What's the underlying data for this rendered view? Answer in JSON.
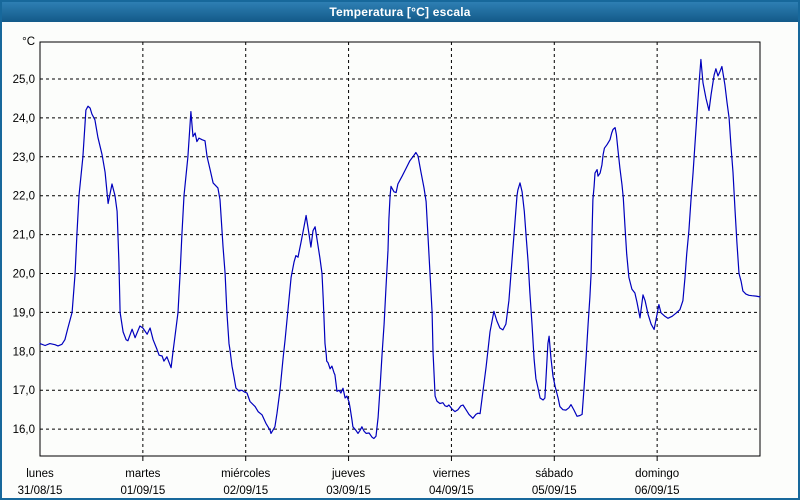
{
  "window": {
    "title": "Temperatura [°C] escala"
  },
  "chart_data": {
    "type": "line",
    "title": "Temperatura [°C] escala",
    "legend": "none",
    "grid": "dashed",
    "y_axis": {
      "unit": "°C",
      "range": [
        15.31,
        25.95
      ],
      "tick_values": [
        16,
        17,
        18,
        19,
        20,
        21,
        22,
        23,
        24,
        25
      ],
      "tick_labels": [
        "16,0",
        "17,0",
        "18,0",
        "19,0",
        "20,0",
        "21,0",
        "22,0",
        "23,0",
        "24,0",
        "25,0"
      ]
    },
    "x_axis": {
      "total_hours": 168,
      "days": [
        {
          "name": "lunes",
          "date": "31/08/15"
        },
        {
          "name": "martes",
          "date": "01/09/15"
        },
        {
          "name": "miércoles",
          "date": "02/09/15"
        },
        {
          "name": "jueves",
          "date": "03/09/15"
        },
        {
          "name": "viernes",
          "date": "04/09/15"
        },
        {
          "name": "sábado",
          "date": "05/09/15"
        },
        {
          "name": "domingo",
          "date": "06/09/15"
        }
      ]
    },
    "series": [
      {
        "name": "Temperatura",
        "color": "#0000bd",
        "points": [
          [
            0,
            18.2
          ],
          [
            1.2,
            18.15
          ],
          [
            2.3,
            18.2
          ],
          [
            3.5,
            18.17
          ],
          [
            4.2,
            18.14
          ],
          [
            5.1,
            18.18
          ],
          [
            5.8,
            18.3
          ],
          [
            6.5,
            18.6
          ],
          [
            7.5,
            19.0
          ],
          [
            7.9,
            19.6
          ],
          [
            8.2,
            20.0
          ],
          [
            8.6,
            21.0
          ],
          [
            9.1,
            22.0
          ],
          [
            10,
            23.0
          ],
          [
            10.7,
            24.2
          ],
          [
            11.2,
            24.3
          ],
          [
            11.7,
            24.25
          ],
          [
            12.1,
            24.1
          ],
          [
            12.8,
            23.95
          ],
          [
            13.5,
            23.5
          ],
          [
            14.5,
            23.05
          ],
          [
            15.2,
            22.6
          ],
          [
            15.9,
            21.8
          ],
          [
            16.8,
            22.3
          ],
          [
            17.5,
            22.0
          ],
          [
            18,
            21.6
          ],
          [
            18.4,
            20.3
          ],
          [
            18.7,
            19.0
          ],
          [
            19.4,
            18.5
          ],
          [
            20.1,
            18.3
          ],
          [
            20.5,
            18.27
          ],
          [
            21.5,
            18.57
          ],
          [
            22.2,
            18.35
          ],
          [
            23.3,
            18.65
          ],
          [
            24,
            18.6
          ],
          [
            25,
            18.44
          ],
          [
            25.7,
            18.6
          ],
          [
            26.4,
            18.3
          ],
          [
            27.3,
            18.05
          ],
          [
            27.8,
            17.9
          ],
          [
            28.5,
            17.88
          ],
          [
            28.9,
            17.75
          ],
          [
            29.6,
            17.86
          ],
          [
            30.6,
            17.58
          ],
          [
            31,
            17.97
          ],
          [
            31.5,
            18.39
          ],
          [
            32.2,
            19.0
          ],
          [
            32.7,
            20.0
          ],
          [
            33.1,
            21.0
          ],
          [
            33.6,
            22.0
          ],
          [
            34.5,
            23.0
          ],
          [
            35.2,
            24.16
          ],
          [
            35.7,
            23.52
          ],
          [
            36.2,
            23.61
          ],
          [
            36.6,
            23.39
          ],
          [
            37.1,
            23.48
          ],
          [
            37.8,
            23.44
          ],
          [
            38.5,
            23.41
          ],
          [
            39,
            23.0
          ],
          [
            39.7,
            22.67
          ],
          [
            40.4,
            22.33
          ],
          [
            41.5,
            22.2
          ],
          [
            42,
            21.9
          ],
          [
            42.7,
            20.7
          ],
          [
            43.2,
            20.0
          ],
          [
            43.6,
            19.0
          ],
          [
            44.1,
            18.2
          ],
          [
            44.3,
            18.05
          ],
          [
            44.8,
            17.62
          ],
          [
            45.3,
            17.33
          ],
          [
            45.7,
            17.06
          ],
          [
            46.4,
            16.98
          ],
          [
            47.1,
            17.0
          ],
          [
            47.8,
            16.95
          ],
          [
            48.3,
            16.93
          ],
          [
            49,
            16.71
          ],
          [
            50.2,
            16.58
          ],
          [
            50.9,
            16.45
          ],
          [
            51.8,
            16.37
          ],
          [
            52.7,
            16.15
          ],
          [
            53.7,
            15.97
          ],
          [
            53.9,
            15.89
          ],
          [
            54.8,
            16.06
          ],
          [
            55.3,
            16.41
          ],
          [
            56,
            17.0
          ],
          [
            56.7,
            17.8
          ],
          [
            57.2,
            18.3
          ],
          [
            57.9,
            19.1
          ],
          [
            58.6,
            19.9
          ],
          [
            59.3,
            20.3
          ],
          [
            59.7,
            20.46
          ],
          [
            60.2,
            20.42
          ],
          [
            60.9,
            20.8
          ],
          [
            61.6,
            21.2
          ],
          [
            62.1,
            21.49
          ],
          [
            62.8,
            21.0
          ],
          [
            63.2,
            20.68
          ],
          [
            63.7,
            21.1
          ],
          [
            64.2,
            21.2
          ],
          [
            64.6,
            20.9
          ],
          [
            65.3,
            20.4
          ],
          [
            65.8,
            20.0
          ],
          [
            66.1,
            19.3
          ],
          [
            66.5,
            18.2
          ],
          [
            66.8,
            17.9
          ],
          [
            66.9,
            17.75
          ],
          [
            67.2,
            17.71
          ],
          [
            67.7,
            17.55
          ],
          [
            68.1,
            17.62
          ],
          [
            68.6,
            17.45
          ],
          [
            68.8,
            17.4
          ],
          [
            69.3,
            16.97
          ],
          [
            69.8,
            17.0
          ],
          [
            70.2,
            16.93
          ],
          [
            70.7,
            17.05
          ],
          [
            71.2,
            16.8
          ],
          [
            71.6,
            16.85
          ],
          [
            72.1,
            16.7
          ],
          [
            72.3,
            16.58
          ],
          [
            72.8,
            16.23
          ],
          [
            73,
            16.06
          ],
          [
            73.7,
            15.97
          ],
          [
            74.2,
            15.89
          ],
          [
            74.7,
            15.97
          ],
          [
            75.1,
            16.06
          ],
          [
            75.6,
            15.95
          ],
          [
            76.1,
            15.89
          ],
          [
            76.8,
            15.9
          ],
          [
            77.5,
            15.79
          ],
          [
            77.9,
            15.76
          ],
          [
            78.4,
            15.82
          ],
          [
            78.9,
            16.3
          ],
          [
            79.3,
            17.0
          ],
          [
            79.8,
            17.9
          ],
          [
            80.3,
            18.7
          ],
          [
            80.7,
            19.6
          ],
          [
            81.2,
            20.6
          ],
          [
            81.4,
            21.4
          ],
          [
            81.7,
            22.0
          ],
          [
            81.9,
            22.24
          ],
          [
            82.6,
            22.1
          ],
          [
            83.1,
            22.08
          ],
          [
            83.5,
            22.3
          ],
          [
            84.5,
            22.5
          ],
          [
            85.4,
            22.7
          ],
          [
            86.3,
            22.9
          ],
          [
            87,
            23.0
          ],
          [
            87.7,
            23.11
          ],
          [
            88.2,
            23.02
          ],
          [
            88.9,
            22.6
          ],
          [
            89.6,
            22.2
          ],
          [
            90.1,
            21.85
          ],
          [
            90.5,
            21.0
          ],
          [
            91,
            20.0
          ],
          [
            91.5,
            19.0
          ],
          [
            91.7,
            18.0
          ],
          [
            92.2,
            16.85
          ],
          [
            92.6,
            16.72
          ],
          [
            93.3,
            16.66
          ],
          [
            94,
            16.68
          ],
          [
            94.5,
            16.6
          ],
          [
            95,
            16.58
          ],
          [
            95.4,
            16.62
          ],
          [
            96.1,
            16.52
          ],
          [
            96.8,
            16.45
          ],
          [
            97.5,
            16.5
          ],
          [
            98.2,
            16.6
          ],
          [
            98.7,
            16.62
          ],
          [
            99.4,
            16.5
          ],
          [
            100.1,
            16.38
          ],
          [
            101,
            16.28
          ],
          [
            101.7,
            16.38
          ],
          [
            102.2,
            16.41
          ],
          [
            102.7,
            16.4
          ],
          [
            103.4,
            17.0
          ],
          [
            104.1,
            17.6
          ],
          [
            105,
            18.5
          ],
          [
            105.9,
            19.03
          ],
          [
            106.6,
            18.78
          ],
          [
            107.3,
            18.6
          ],
          [
            108,
            18.55
          ],
          [
            108.7,
            18.7
          ],
          [
            109.4,
            19.3
          ],
          [
            110.1,
            20.3
          ],
          [
            110.8,
            21.3
          ],
          [
            111.3,
            22.0
          ],
          [
            111.5,
            22.15
          ],
          [
            112,
            22.33
          ],
          [
            112.5,
            22.1
          ],
          [
            113,
            21.6
          ],
          [
            113.4,
            21.0
          ],
          [
            113.9,
            20.3
          ],
          [
            114.3,
            19.5
          ],
          [
            114.8,
            18.7
          ],
          [
            115.3,
            17.8
          ],
          [
            115.7,
            17.3
          ],
          [
            116.2,
            17.06
          ],
          [
            116.7,
            16.8
          ],
          [
            117.4,
            16.75
          ],
          [
            117.8,
            16.8
          ],
          [
            118.5,
            18.2
          ],
          [
            118.8,
            18.39
          ],
          [
            119.2,
            17.84
          ],
          [
            119.7,
            17.36
          ],
          [
            120.2,
            17.1
          ],
          [
            120.9,
            16.8
          ],
          [
            121.3,
            16.58
          ],
          [
            122,
            16.5
          ],
          [
            122.7,
            16.49
          ],
          [
            123.4,
            16.55
          ],
          [
            123.9,
            16.63
          ],
          [
            124.6,
            16.49
          ],
          [
            125.3,
            16.33
          ],
          [
            126,
            16.35
          ],
          [
            126.5,
            16.38
          ],
          [
            126.9,
            17.0
          ],
          [
            127.4,
            17.8
          ],
          [
            127.9,
            18.7
          ],
          [
            128.3,
            19.4
          ],
          [
            128.6,
            20.0
          ],
          [
            128.8,
            21.0
          ],
          [
            129,
            21.9
          ],
          [
            129.3,
            22.24
          ],
          [
            129.5,
            22.58
          ],
          [
            130,
            22.67
          ],
          [
            130.2,
            22.5
          ],
          [
            130.7,
            22.58
          ],
          [
            131.1,
            22.79
          ],
          [
            131.4,
            23.05
          ],
          [
            131.7,
            23.22
          ],
          [
            132.3,
            23.31
          ],
          [
            132.5,
            23.35
          ],
          [
            133,
            23.44
          ],
          [
            133.4,
            23.61
          ],
          [
            133.7,
            23.7
          ],
          [
            134.2,
            23.75
          ],
          [
            134.5,
            23.57
          ],
          [
            134.9,
            23.14
          ],
          [
            135.3,
            22.71
          ],
          [
            135.8,
            22.28
          ],
          [
            136.1,
            21.94
          ],
          [
            136.5,
            21.2
          ],
          [
            136.9,
            20.5
          ],
          [
            137.4,
            19.9
          ],
          [
            138.1,
            19.6
          ],
          [
            138.8,
            19.5
          ],
          [
            139.3,
            19.26
          ],
          [
            140,
            18.86
          ],
          [
            140.7,
            19.45
          ],
          [
            141.2,
            19.3
          ],
          [
            141.9,
            18.95
          ],
          [
            142.6,
            18.7
          ],
          [
            143.3,
            18.56
          ],
          [
            143.7,
            18.8
          ],
          [
            144.4,
            19.2
          ],
          [
            144.9,
            18.99
          ],
          [
            145.8,
            18.9
          ],
          [
            146.5,
            18.85
          ],
          [
            147.5,
            18.9
          ],
          [
            148.4,
            18.98
          ],
          [
            149.3,
            19.07
          ],
          [
            150,
            19.3
          ],
          [
            150.5,
            19.9
          ],
          [
            150.9,
            20.5
          ],
          [
            151.4,
            21.1
          ],
          [
            151.9,
            21.9
          ],
          [
            152.4,
            22.6
          ],
          [
            152.8,
            23.3
          ],
          [
            153.3,
            24.1
          ],
          [
            153.8,
            24.9
          ],
          [
            154.2,
            25.5
          ],
          [
            154.7,
            24.9
          ],
          [
            155.4,
            24.5
          ],
          [
            156.1,
            24.19
          ],
          [
            156.6,
            24.6
          ],
          [
            157.3,
            25.1
          ],
          [
            157.7,
            25.26
          ],
          [
            158.2,
            25.08
          ],
          [
            158.7,
            25.2
          ],
          [
            159.1,
            25.32
          ],
          [
            159.8,
            24.85
          ],
          [
            160.3,
            24.4
          ],
          [
            160.8,
            24.0
          ],
          [
            161.2,
            23.3
          ],
          [
            161.7,
            22.6
          ],
          [
            162.2,
            21.6
          ],
          [
            162.6,
            20.8
          ],
          [
            163.1,
            20.0
          ],
          [
            163.6,
            19.8
          ],
          [
            164,
            19.55
          ],
          [
            164.7,
            19.47
          ],
          [
            165.4,
            19.44
          ],
          [
            166.1,
            19.43
          ],
          [
            167.1,
            19.42
          ],
          [
            168,
            19.4
          ]
        ]
      }
    ]
  },
  "colors": {
    "window_border": "#17689b",
    "titlebar_top": "#2e7fb3",
    "titlebar_bottom": "#135a89",
    "background": "#fcfdfb",
    "line": "#0000bd",
    "grid": "#000000",
    "text": "#000000"
  }
}
